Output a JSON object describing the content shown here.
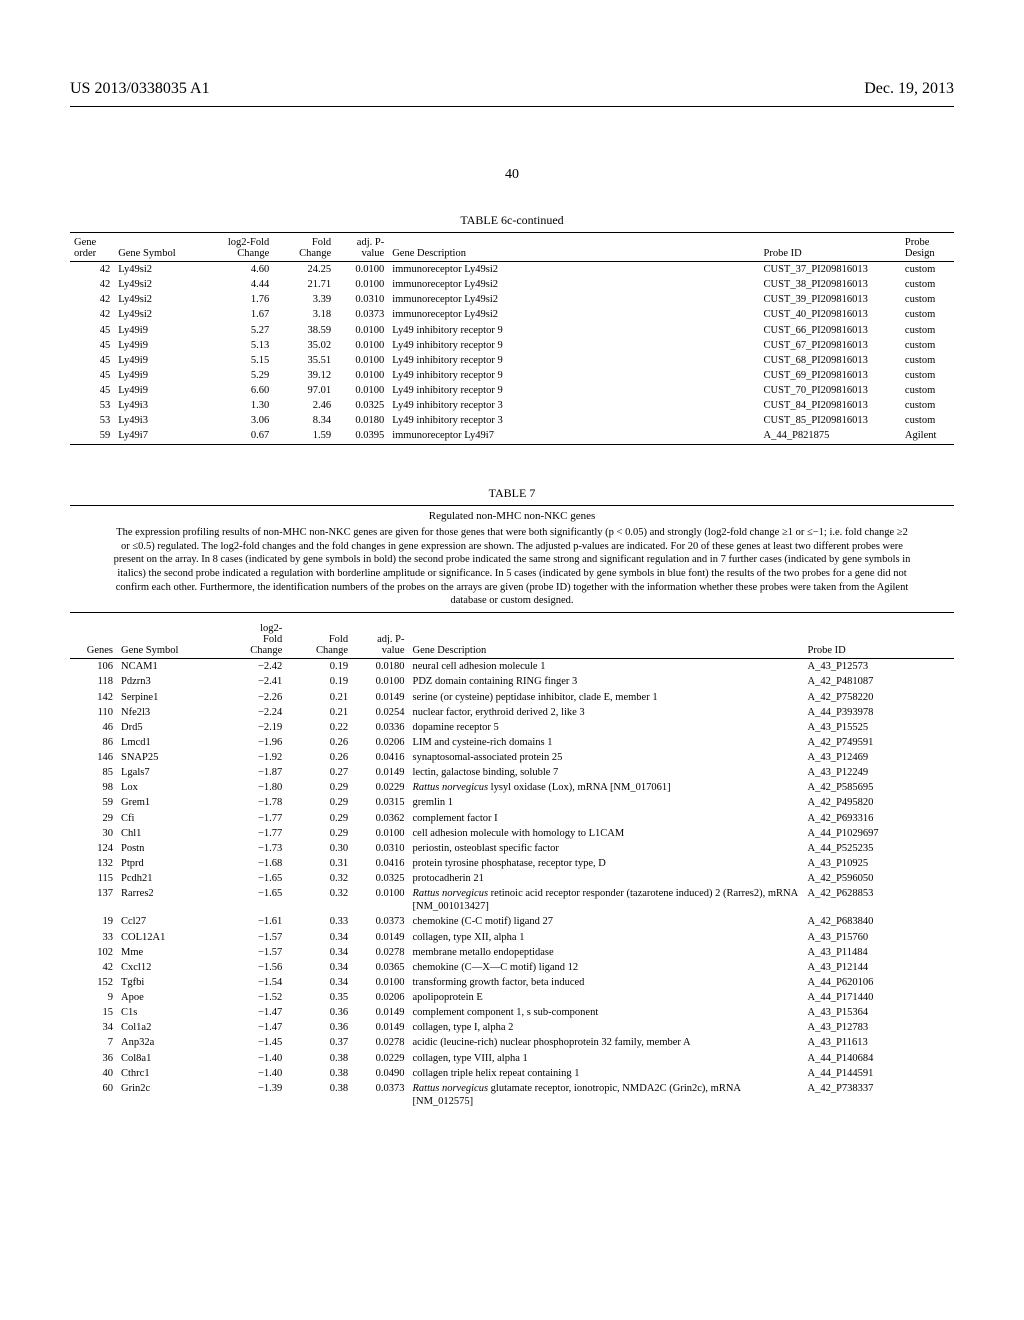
{
  "header": {
    "left": "US 2013/0338035 A1",
    "right": "Dec. 19, 2013"
  },
  "page_number": "40",
  "table6c": {
    "title": "TABLE 6c-continued",
    "columns": [
      "Gene order",
      "Gene Symbol",
      "log2-Fold Change",
      "Fold Change",
      "adj. P-value",
      "Gene Description",
      "Probe ID",
      "Probe Design"
    ],
    "rows": [
      [
        "42",
        "Ly49si2",
        "4.60",
        "24.25",
        "0.0100",
        "immunoreceptor Ly49si2",
        "CUST_37_PI209816013",
        "custom"
      ],
      [
        "42",
        "Ly49si2",
        "4.44",
        "21.71",
        "0.0100",
        "immunoreceptor Ly49si2",
        "CUST_38_PI209816013",
        "custom"
      ],
      [
        "42",
        "Ly49si2",
        "1.76",
        "3.39",
        "0.0310",
        "immunoreceptor Ly49si2",
        "CUST_39_PI209816013",
        "custom"
      ],
      [
        "42",
        "Ly49si2",
        "1.67",
        "3.18",
        "0.0373",
        "immunoreceptor Ly49si2",
        "CUST_40_PI209816013",
        "custom"
      ],
      [
        "45",
        "Ly49i9",
        "5.27",
        "38.59",
        "0.0100",
        "Ly49 inhibitory receptor 9",
        "CUST_66_PI209816013",
        "custom"
      ],
      [
        "45",
        "Ly49i9",
        "5.13",
        "35.02",
        "0.0100",
        "Ly49 inhibitory receptor 9",
        "CUST_67_PI209816013",
        "custom"
      ],
      [
        "45",
        "Ly49i9",
        "5.15",
        "35.51",
        "0.0100",
        "Ly49 inhibitory receptor 9",
        "CUST_68_PI209816013",
        "custom"
      ],
      [
        "45",
        "Ly49i9",
        "5.29",
        "39.12",
        "0.0100",
        "Ly49 inhibitory receptor 9",
        "CUST_69_PI209816013",
        "custom"
      ],
      [
        "45",
        "Ly49i9",
        "6.60",
        "97.01",
        "0.0100",
        "Ly49 inhibitory receptor 9",
        "CUST_70_PI209816013",
        "custom"
      ],
      [
        "53",
        "Ly49i3",
        "1.30",
        "2.46",
        "0.0325",
        "Ly49 inhibitory receptor 3",
        "CUST_84_PI209816013",
        "custom"
      ],
      [
        "53",
        "Ly49i3",
        "3.06",
        "8.34",
        "0.0180",
        "Ly49 inhibitory receptor 3",
        "CUST_85_PI209816013",
        "custom"
      ],
      [
        "59",
        "Ly49i7",
        "0.67",
        "1.59",
        "0.0395",
        "immunoreceptor Ly49i7",
        "A_44_P821875",
        "Agilent"
      ]
    ]
  },
  "table7": {
    "title": "TABLE 7",
    "subtitle": "Regulated non-MHC non-NKC genes",
    "caption": "The expression profiling results of non-MHC non-NKC genes are given for those genes that were both significantly (p < 0.05) and strongly (log2-fold change ≥1 or ≤−1; i.e. fold change ≥2 or ≤0.5) regulated. The log2-fold changes and the fold changes in gene expression are shown. The adjusted p-values are indicated. For 20 of these genes at least two different probes were present on the array. In 8 cases (indicated by gene symbols in bold) the second probe indicated the same strong and significant regulation and in 7 further cases (indicated by gene symbols in italics) the second probe indicated a regulation with borderline amplitude or significance. In 5 cases (indicated by gene symbols in blue font) the results of the two probes for a gene did not confirm each other. Furthermore, the identification numbers of the probes on the arrays are given (probe ID) together with the information whether these probes were taken from the Agilent database or custom designed.",
    "columns": [
      "Genes",
      "Gene Symbol",
      "log2-Fold Change",
      "Fold Change",
      "adj. P-value",
      "Gene Description",
      "Probe ID"
    ],
    "rows": [
      [
        "106",
        "NCAM1",
        "−2.42",
        "0.19",
        "0.0180",
        "neural cell adhesion molecule 1",
        "A_43_P12573",
        ""
      ],
      [
        "118",
        "Pdzrn3",
        "−2.41",
        "0.19",
        "0.0100",
        "PDZ domain containing RING finger 3",
        "A_42_P481087",
        ""
      ],
      [
        "142",
        "Serpine1",
        "−2.26",
        "0.21",
        "0.0149",
        "serine (or cysteine) peptidase inhibitor, clade E, member 1",
        "A_42_P758220",
        ""
      ],
      [
        "110",
        "Nfe2l3",
        "−2.24",
        "0.21",
        "0.0254",
        "nuclear factor, erythroid derived 2, like 3",
        "A_44_P393978",
        ""
      ],
      [
        "46",
        "Drd5",
        "−2.19",
        "0.22",
        "0.0336",
        "dopamine receptor 5",
        "A_43_P15525",
        ""
      ],
      [
        "86",
        "Lmcd1",
        "−1.96",
        "0.26",
        "0.0206",
        "LIM and cysteine-rich domains 1",
        "A_42_P749591",
        ""
      ],
      [
        "146",
        "SNAP25",
        "−1.92",
        "0.26",
        "0.0416",
        "synaptosomal-associated protein 25",
        "A_43_P12469",
        ""
      ],
      [
        "85",
        "Lgals7",
        "−1.87",
        "0.27",
        "0.0149",
        "lectin, galactose binding, soluble 7",
        "A_43_P12249",
        ""
      ],
      [
        "98",
        "Lox",
        "−1.80",
        "0.29",
        "0.0229",
        "<span class=\"italic\">Rattus norvegicus</span> lysyl oxidase (Lox), mRNA [NM_017061]",
        "A_42_P585695",
        ""
      ],
      [
        "59",
        "Grem1",
        "−1.78",
        "0.29",
        "0.0315",
        "gremlin 1",
        "A_42_P495820",
        ""
      ],
      [
        "29",
        "Cfi",
        "−1.77",
        "0.29",
        "0.0362",
        "complement factor I",
        "A_42_P693316",
        ""
      ],
      [
        "30",
        "Chl1",
        "−1.77",
        "0.29",
        "0.0100",
        "cell adhesion molecule with homology to L1CAM",
        "A_44_P1029697",
        ""
      ],
      [
        "124",
        "Postn",
        "−1.73",
        "0.30",
        "0.0310",
        "periostin, osteoblast specific factor",
        "A_44_P525235",
        ""
      ],
      [
        "132",
        "Ptprd",
        "−1.68",
        "0.31",
        "0.0416",
        "protein tyrosine phosphatase, receptor type, D",
        "A_43_P10925",
        ""
      ],
      [
        "115",
        "Pcdh21",
        "−1.65",
        "0.32",
        "0.0325",
        "protocadherin 21",
        "A_42_P596050",
        ""
      ],
      [
        "137",
        "Rarres2",
        "−1.65",
        "0.32",
        "0.0100",
        "<span class=\"italic\">Rattus norvegicus</span> retinoic acid receptor responder (tazarotene induced) 2 (Rarres2), mRNA [NM_001013427]",
        "A_42_P628853",
        ""
      ],
      [
        "19",
        "Ccl27",
        "−1.61",
        "0.33",
        "0.0373",
        "chemokine (C-C motif) ligand 27",
        "A_42_P683840",
        ""
      ],
      [
        "33",
        "COL12A1",
        "−1.57",
        "0.34",
        "0.0149",
        "collagen, type XII, alpha 1",
        "A_43_P15760",
        ""
      ],
      [
        "102",
        "Mme",
        "−1.57",
        "0.34",
        "0.0278",
        "membrane metallo endopeptidase",
        "A_43_P11484",
        ""
      ],
      [
        "42",
        "Cxcl12",
        "−1.56",
        "0.34",
        "0.0365",
        "chemokine (C—X—C motif) ligand 12",
        "A_43_P12144",
        ""
      ],
      [
        "152",
        "Tgfbi",
        "−1.54",
        "0.34",
        "0.0100",
        "transforming growth factor, beta induced",
        "A_44_P620106",
        ""
      ],
      [
        "9",
        "Apoe",
        "−1.52",
        "0.35",
        "0.0206",
        "apolipoprotein E",
        "A_44_P171440",
        ""
      ],
      [
        "15",
        "C1s",
        "−1.47",
        "0.36",
        "0.0149",
        "complement component 1, s sub-component",
        "A_43_P15364",
        ""
      ],
      [
        "34",
        "Col1a2",
        "−1.47",
        "0.36",
        "0.0149",
        "collagen, type I, alpha 2",
        "A_43_P12783",
        ""
      ],
      [
        "7",
        "Anp32a",
        "−1.45",
        "0.37",
        "0.0278",
        "acidic (leucine-rich) nuclear phosphoprotein 32 family, member A",
        "A_43_P11613",
        ""
      ],
      [
        "36",
        "Col8a1",
        "−1.40",
        "0.38",
        "0.0229",
        "collagen, type VIII, alpha 1",
        "A_44_P140684",
        ""
      ],
      [
        "40",
        "Cthrc1",
        "−1.40",
        "0.38",
        "0.0490",
        "collagen triple helix repeat containing 1",
        "A_44_P144591",
        ""
      ],
      [
        "60",
        "Grin2c",
        "−1.39",
        "0.38",
        "0.0373",
        "<span class=\"italic\">Rattus norvegicus</span> glutamate receptor, ionotropic, NMDA2C (Grin2c), mRNA [NM_012575]",
        "A_42_P738337",
        ""
      ]
    ]
  }
}
